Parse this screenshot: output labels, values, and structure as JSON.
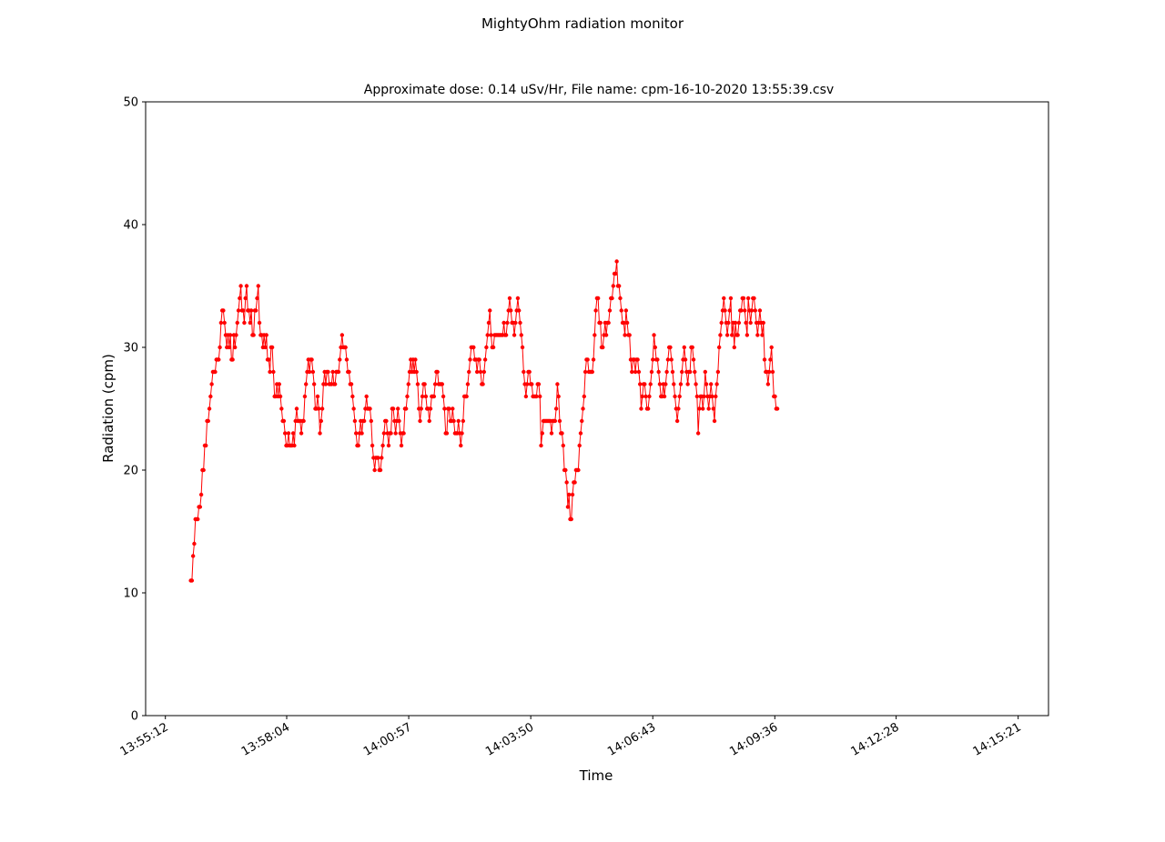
{
  "chart_data": {
    "type": "line",
    "title": "MightyOhm radiation monitor",
    "subtitle": "Approximate dose:  0.14 uSv/Hr, File name: cpm-16-10-2020 13:55:39.csv",
    "xlabel": "Time",
    "ylabel": "Radiation (cpm)",
    "xlim": [
      "13:54:44",
      "14:16:04"
    ],
    "ylim": [
      0,
      50
    ],
    "x_ticks": [
      "13:55:12",
      "13:58:04",
      "14:00:57",
      "14:03:50",
      "14:06:43",
      "14:09:36",
      "14:12:28",
      "14:15:21"
    ],
    "y_ticks": [
      0,
      10,
      20,
      30,
      40,
      50
    ],
    "grid": false,
    "line_color": "#ff0000",
    "marker": "circle",
    "series": [
      {
        "x_start": "13:55:48",
        "x_step_seconds": 1.65,
        "values": [
          11,
          11,
          13,
          14,
          16,
          16,
          16,
          17,
          17,
          18,
          20,
          20,
          22,
          22,
          24,
          24,
          25,
          26,
          27,
          28,
          28,
          28,
          29,
          29,
          29,
          30,
          32,
          33,
          33,
          32,
          31,
          30,
          31,
          30,
          31,
          29,
          29,
          31,
          30,
          31,
          32,
          33,
          34,
          35,
          33,
          33,
          32,
          34,
          35,
          33,
          33,
          32,
          33,
          31,
          31,
          33,
          33,
          34,
          35,
          32,
          31,
          31,
          30,
          31,
          30,
          31,
          29,
          29,
          28,
          30,
          30,
          28,
          26,
          26,
          27,
          26,
          27,
          26,
          25,
          24,
          24,
          23,
          22,
          22,
          23,
          22,
          22,
          22,
          23,
          22,
          24,
          25,
          24,
          24,
          24,
          23,
          24,
          24,
          26,
          27,
          28,
          29,
          28,
          29,
          29,
          28,
          27,
          25,
          25,
          26,
          25,
          23,
          24,
          25,
          27,
          28,
          27,
          28,
          28,
          27,
          27,
          27,
          28,
          27,
          27,
          28,
          28,
          28,
          29,
          30,
          31,
          30,
          30,
          30,
          29,
          28,
          28,
          27,
          27,
          26,
          25,
          24,
          23,
          22,
          22,
          23,
          24,
          23,
          24,
          24,
          25,
          26,
          25,
          25,
          25,
          24,
          22,
          21,
          20,
          21,
          21,
          21,
          20,
          20,
          21,
          22,
          23,
          24,
          24,
          23,
          22,
          23,
          23,
          25,
          25,
          24,
          23,
          24,
          25,
          24,
          23,
          22,
          23,
          23,
          25,
          25,
          26,
          27,
          28,
          29,
          28,
          29,
          28,
          29,
          28,
          27,
          25,
          24,
          25,
          26,
          27,
          27,
          26,
          25,
          25,
          24,
          25,
          26,
          26,
          26,
          27,
          28,
          28,
          27,
          27,
          27,
          27,
          26,
          25,
          23,
          23,
          25,
          25,
          24,
          24,
          25,
          24,
          23,
          23,
          23,
          24,
          23,
          22,
          23,
          24,
          26,
          26,
          26,
          27,
          28,
          29,
          30,
          30,
          30,
          29,
          29,
          28,
          29,
          29,
          28,
          27,
          27,
          28,
          29,
          30,
          31,
          32,
          33,
          31,
          30,
          30,
          31,
          31,
          31,
          31,
          31,
          31,
          31,
          31,
          32,
          31,
          31,
          32,
          33,
          34,
          33,
          32,
          32,
          31,
          32,
          33,
          34,
          33,
          32,
          31,
          30,
          28,
          27,
          26,
          27,
          28,
          28,
          27,
          27,
          26,
          26,
          26,
          26,
          27,
          27,
          26,
          22,
          23,
          24,
          24,
          24,
          24,
          24,
          24,
          24,
          23,
          24,
          24,
          24,
          25,
          27,
          26,
          24,
          23,
          23,
          22,
          20,
          20,
          19,
          17,
          18,
          16,
          16,
          18,
          19,
          19,
          20,
          20,
          20,
          22,
          23,
          24,
          25,
          26,
          28,
          29,
          29,
          28,
          28,
          28,
          28,
          29,
          31,
          33,
          34,
          34,
          32,
          32,
          30,
          30,
          31,
          32,
          31,
          32,
          32,
          33,
          34,
          34,
          35,
          36,
          36,
          37,
          35,
          35,
          34,
          33,
          32,
          32,
          31,
          33,
          32,
          31,
          31,
          29,
          28,
          29,
          29,
          28,
          29,
          29,
          28,
          27,
          25,
          26,
          27,
          27,
          26,
          25,
          25,
          26,
          27,
          28,
          29,
          31,
          30,
          29,
          29,
          28,
          27,
          26,
          26,
          27,
          26,
          27,
          28,
          29,
          30,
          30,
          29,
          28,
          27,
          26,
          25,
          24,
          25,
          26,
          27,
          28,
          29,
          30,
          29,
          28,
          27,
          28,
          28,
          30,
          30,
          29,
          28,
          27,
          26,
          23,
          25,
          26,
          26,
          25,
          26,
          28,
          27,
          26,
          25,
          26,
          27,
          26,
          25,
          24,
          26,
          27,
          28,
          30,
          31,
          32,
          33,
          34,
          33,
          32,
          31,
          32,
          33,
          34,
          31,
          32,
          30,
          32,
          31,
          31,
          32,
          33,
          33,
          34,
          34,
          33,
          32,
          31,
          34,
          33,
          32,
          33,
          34,
          34,
          33,
          32,
          31,
          32,
          33,
          32,
          31,
          32,
          29,
          28,
          28,
          27,
          28,
          29,
          30,
          28,
          26,
          26,
          25,
          25
        ]
      }
    ]
  }
}
